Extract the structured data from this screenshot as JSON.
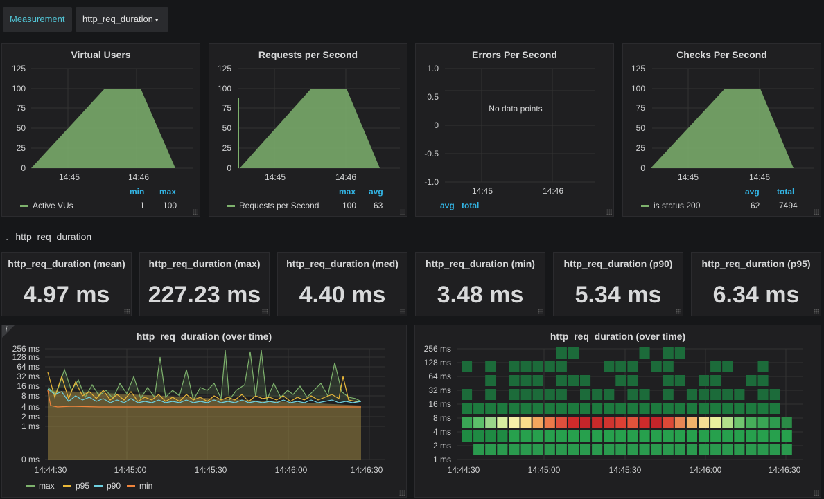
{
  "toolbar": {
    "measurement_label": "Measurement",
    "dropdown_value": "http_req_duration"
  },
  "panels": {
    "vus": {
      "title": "Virtual Users",
      "y_ticks": [
        "125",
        "100",
        "75",
        "50",
        "25",
        "0"
      ],
      "x_ticks": [
        "14:45",
        "14:46"
      ],
      "legend_cols": [
        "min",
        "max"
      ],
      "legend_name": "Active VUs",
      "legend_vals": [
        "1",
        "100"
      ]
    },
    "rps": {
      "title": "Requests per Second",
      "y_ticks": [
        "125",
        "100",
        "75",
        "50",
        "25",
        "0"
      ],
      "x_ticks": [
        "14:45",
        "14:46"
      ],
      "legend_cols": [
        "max",
        "avg"
      ],
      "legend_name": "Requests per Second",
      "legend_vals": [
        "100",
        "63"
      ]
    },
    "eps": {
      "title": "Errors Per Second",
      "y_ticks": [
        "1.0",
        "0.5",
        "0",
        "-0.5",
        "-1.0"
      ],
      "x_ticks": [
        "14:45",
        "14:46"
      ],
      "no_data": "No data points",
      "legend_cols": [
        "avg",
        "total"
      ]
    },
    "cps": {
      "title": "Checks Per Second",
      "y_ticks": [
        "125",
        "100",
        "75",
        "50",
        "25",
        "0"
      ],
      "x_ticks": [
        "14:45",
        "14:46"
      ],
      "legend_cols": [
        "avg",
        "total"
      ],
      "legend_name": "is status 200",
      "legend_vals": [
        "62",
        "7494"
      ]
    }
  },
  "row_header": "http_req_duration",
  "stats": [
    {
      "title": "http_req_duration (mean)",
      "value": "4.97 ms"
    },
    {
      "title": "http_req_duration (max)",
      "value": "227.23 ms"
    },
    {
      "title": "http_req_duration (med)",
      "value": "4.40 ms"
    },
    {
      "title": "http_req_duration (min)",
      "value": "3.48 ms"
    },
    {
      "title": "http_req_duration (p90)",
      "value": "5.34 ms"
    },
    {
      "title": "http_req_duration (p95)",
      "value": "6.34 ms"
    }
  ],
  "line_panel": {
    "title": "http_req_duration (over time)",
    "info_icon": "i",
    "y_ticks": [
      "256 ms",
      "128 ms",
      "64 ms",
      "32 ms",
      "16 ms",
      "8 ms",
      "4 ms",
      "2 ms",
      "1 ms",
      "0 ms"
    ],
    "x_ticks": [
      "14:44:30",
      "14:45:00",
      "14:45:30",
      "14:46:00",
      "14:46:30"
    ],
    "legend": [
      {
        "name": "max",
        "color": "#7eb26d"
      },
      {
        "name": "p95",
        "color": "#eab839"
      },
      {
        "name": "p90",
        "color": "#6ed0e0"
      },
      {
        "name": "min",
        "color": "#ef843c"
      }
    ]
  },
  "heatmap_panel": {
    "title": "http_req_duration (over time)",
    "y_ticks": [
      "256 ms",
      "128 ms",
      "64 ms",
      "32 ms",
      "16 ms",
      "8 ms",
      "4 ms",
      "2 ms",
      "1 ms"
    ],
    "x_ticks": [
      "14:44:30",
      "14:45:00",
      "14:45:30",
      "14:46:00",
      "14:46:30"
    ]
  },
  "colors": {
    "series_green": "#7eb26d",
    "accent_blue": "#33b5e5"
  }
}
